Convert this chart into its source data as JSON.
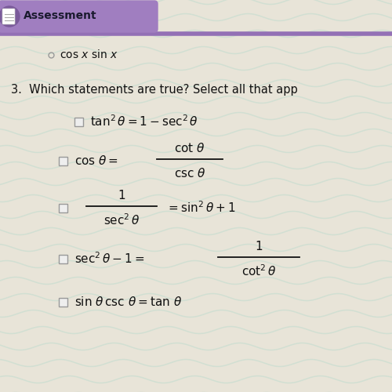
{
  "bg_color": "#e8e4d8",
  "header_bg": "#a07ec0",
  "header_text": "Assessment",
  "header_text_color": "#1a1a2e",
  "divider_color": "#9370b5",
  "text_color": "#111111",
  "checkbox_color": "#999999",
  "wave_color": "#c8ddd0",
  "font_size_header": 10,
  "font_size_question": 9.5,
  "font_size_items": 9,
  "fig_w": 5.0,
  "fig_h": 5.0,
  "dpi": 100
}
